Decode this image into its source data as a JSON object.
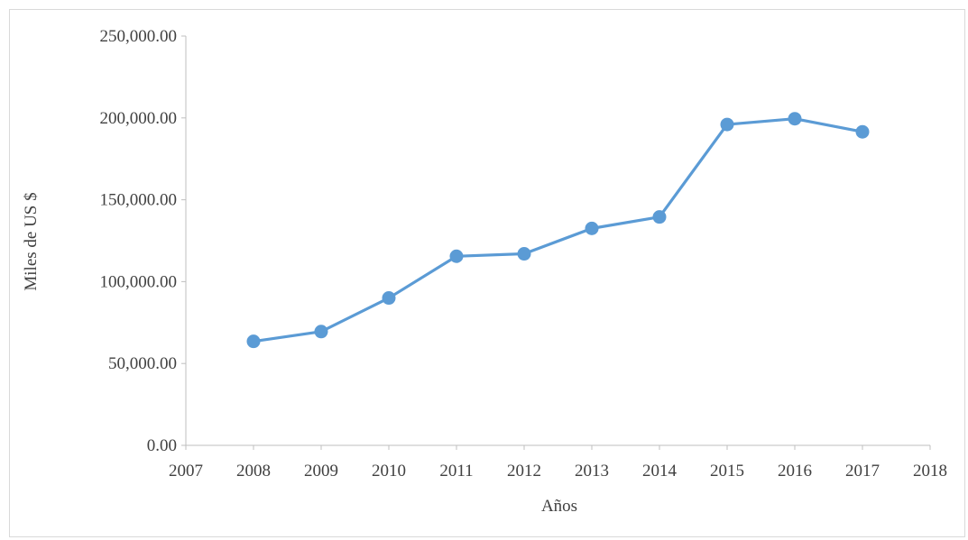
{
  "chart_data": {
    "type": "scatter",
    "title": "",
    "xlabel": "Años",
    "ylabel": "Miles de US $",
    "xlim": [
      2007,
      2018
    ],
    "ylim": [
      0,
      250000
    ],
    "x_ticks": [
      "2007",
      "2008",
      "2009",
      "2010",
      "2011",
      "2012",
      "2013",
      "2014",
      "2015",
      "2016",
      "2017",
      "2018"
    ],
    "y_ticks": [
      "0.00",
      "50,000.00",
      "100,000.00",
      "150,000.00",
      "200,000.00",
      "250,000.00"
    ],
    "x": [
      2008,
      2009,
      2010,
      2011,
      2012,
      2013,
      2014,
      2015,
      2016,
      2017
    ],
    "y": [
      63500,
      69500,
      90000,
      115500,
      117000,
      132500,
      139500,
      196000,
      199500,
      191500
    ],
    "series_color": "#5b9bd5",
    "lines_connected": true,
    "legend": "none",
    "grid": false
  }
}
